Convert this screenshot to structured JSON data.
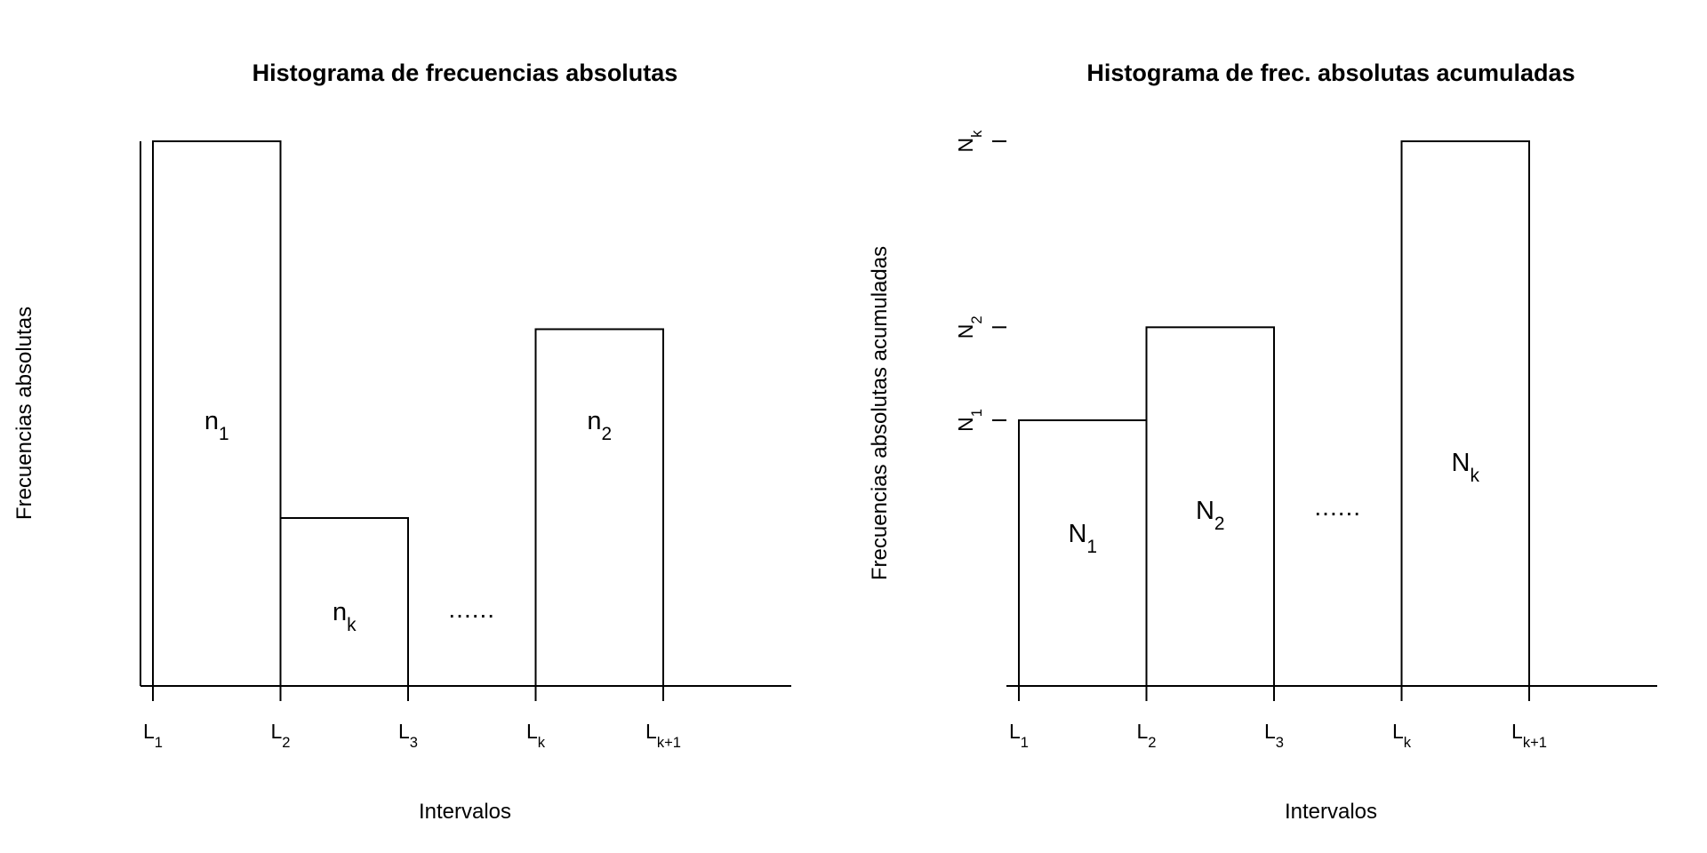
{
  "chart_data": [
    {
      "type": "bar",
      "title": "Histograma de frecuencias absolutas",
      "xlabel": "Intervalos",
      "ylabel": "Frecuencias absolutas",
      "x_ticks": [
        {
          "base": "L",
          "sub": "1"
        },
        {
          "base": "L",
          "sub": "2"
        },
        {
          "base": "L",
          "sub": "3"
        },
        {
          "base": "L",
          "sub": "k"
        },
        {
          "base": "L",
          "sub": "k+1"
        }
      ],
      "y_ticks": [],
      "bars": [
        {
          "interval": [
            0,
            1
          ],
          "value": 6.0,
          "label": {
            "base": "n",
            "sub": "1"
          }
        },
        {
          "interval": [
            1,
            2
          ],
          "value": 1.85,
          "label": {
            "base": "n",
            "sub": "k"
          }
        },
        {
          "interval": [
            3,
            4
          ],
          "value": 3.93,
          "label": {
            "base": "n",
            "sub": "2"
          }
        }
      ],
      "gap_marker": {
        "text": "......",
        "interval": [
          2,
          3
        ],
        "y": 0.85
      },
      "xlim": [
        -0.1,
        5.1
      ],
      "ylim": [
        0,
        6.0
      ],
      "grid": false,
      "legend": "none"
    },
    {
      "type": "bar",
      "title": "Histograma de frec. absolutas acumuladas",
      "xlabel": "Intervalos",
      "ylabel": "Frecuencias absolutas acumuladas",
      "x_ticks": [
        {
          "base": "L",
          "sub": "1"
        },
        {
          "base": "L",
          "sub": "2"
        },
        {
          "base": "L",
          "sub": "3"
        },
        {
          "base": "L",
          "sub": "k"
        },
        {
          "base": "L",
          "sub": "k+1"
        }
      ],
      "y_ticks": [
        {
          "value": 1.0,
          "base": "N",
          "sub": "1"
        },
        {
          "value": 1.35,
          "base": "N",
          "sub": "2"
        },
        {
          "value": 2.05,
          "base": "N",
          "sub": "k"
        }
      ],
      "bars": [
        {
          "interval": [
            0,
            1
          ],
          "value": 1.0,
          "label": {
            "base": "N",
            "sub": "1"
          }
        },
        {
          "interval": [
            1,
            2
          ],
          "value": 1.35,
          "label": {
            "base": "N",
            "sub": "2"
          }
        },
        {
          "interval": [
            3,
            4
          ],
          "value": 2.05,
          "label": {
            "base": "N",
            "sub": "k"
          }
        }
      ],
      "gap_marker": {
        "text": "......",
        "interval": [
          2,
          3
        ],
        "y": 0.66
      },
      "xlim": [
        -0.1,
        5.1
      ],
      "ylim": [
        0,
        2.05
      ],
      "grid": false,
      "legend": "none"
    }
  ]
}
